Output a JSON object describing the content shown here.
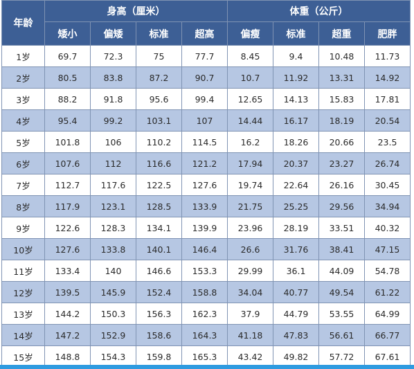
{
  "header": {
    "age_label": "年龄",
    "height_group": "身高（厘米）",
    "weight_group": "体重（公斤）",
    "height_cols": [
      "矮小",
      "偏矮",
      "标准",
      "超高"
    ],
    "weight_cols": [
      "偏瘦",
      "标准",
      "超重",
      "肥胖"
    ]
  },
  "rows": [
    {
      "age": "1岁",
      "values": [
        "69.7",
        "72.3",
        "75",
        "77.7",
        "8.45",
        "9.4",
        "10.48",
        "11.73"
      ]
    },
    {
      "age": "2岁",
      "values": [
        "80.5",
        "83.8",
        "87.2",
        "90.7",
        "10.7",
        "11.92",
        "13.31",
        "14.92"
      ]
    },
    {
      "age": "3岁",
      "values": [
        "88.2",
        "91.8",
        "95.6",
        "99.4",
        "12.65",
        "14.13",
        "15.83",
        "17.81"
      ]
    },
    {
      "age": "4岁",
      "values": [
        "95.4",
        "99.2",
        "103.1",
        "107",
        "14.44",
        "16.17",
        "18.19",
        "20.54"
      ]
    },
    {
      "age": "5岁",
      "values": [
        "101.8",
        "106",
        "110.2",
        "114.5",
        "16.2",
        "18.26",
        "20.66",
        "23.5"
      ]
    },
    {
      "age": "6岁",
      "values": [
        "107.6",
        "112",
        "116.6",
        "121.2",
        "17.94",
        "20.37",
        "23.27",
        "26.74"
      ]
    },
    {
      "age": "7岁",
      "values": [
        "112.7",
        "117.6",
        "122.5",
        "127.6",
        "19.74",
        "22.64",
        "26.16",
        "30.45"
      ]
    },
    {
      "age": "8岁",
      "values": [
        "117.9",
        "123.1",
        "128.5",
        "133.9",
        "21.75",
        "25.25",
        "29.56",
        "34.94"
      ]
    },
    {
      "age": "9岁",
      "values": [
        "122.6",
        "128.3",
        "134.1",
        "139.9",
        "23.96",
        "28.19",
        "33.51",
        "40.32"
      ]
    },
    {
      "age": "10岁",
      "values": [
        "127.6",
        "133.8",
        "140.1",
        "146.4",
        "26.6",
        "31.76",
        "38.41",
        "47.15"
      ]
    },
    {
      "age": "11岁",
      "values": [
        "133.4",
        "140",
        "146.6",
        "153.3",
        "29.99",
        "36.1",
        "44.09",
        "54.78"
      ]
    },
    {
      "age": "12岁",
      "values": [
        "139.5",
        "145.9",
        "152.4",
        "158.8",
        "34.04",
        "40.77",
        "49.54",
        "61.22"
      ]
    },
    {
      "age": "13岁",
      "values": [
        "144.2",
        "150.3",
        "156.3",
        "162.3",
        "37.9",
        "44.79",
        "53.55",
        "64.99"
      ]
    },
    {
      "age": "14岁",
      "values": [
        "147.2",
        "152.9",
        "158.6",
        "164.3",
        "41.18",
        "47.83",
        "56.61",
        "66.77"
      ]
    },
    {
      "age": "15岁",
      "values": [
        "148.8",
        "154.3",
        "159.8",
        "165.3",
        "43.42",
        "49.82",
        "57.72",
        "67.61"
      ]
    }
  ],
  "colors": {
    "header_bg": "#3d5f95",
    "stripe_bg": "#b6c7e3",
    "border": "#7f93b3",
    "bottom_bar": "#2f9be0"
  }
}
